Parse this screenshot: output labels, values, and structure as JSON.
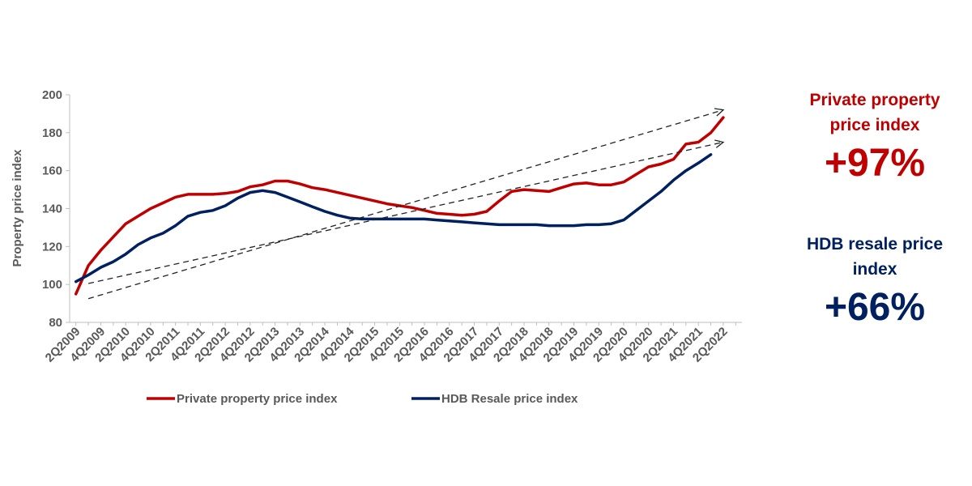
{
  "chart_data": {
    "type": "line",
    "title": "",
    "xlabel": "",
    "ylabel": "Property price index",
    "ylim": [
      80,
      200
    ],
    "yticks": [
      80,
      100,
      120,
      140,
      160,
      180,
      200
    ],
    "grid": false,
    "legend_position": "bottom",
    "x_labels_shown": [
      "2Q2009",
      "4Q2009",
      "2Q2010",
      "4Q2010",
      "2Q2011",
      "4Q2011",
      "2Q2012",
      "4Q2012",
      "2Q2013",
      "4Q2013",
      "2Q2014",
      "4Q2014",
      "2Q2015",
      "4Q2015",
      "2Q2016",
      "4Q2016",
      "2Q2017",
      "4Q2017",
      "2Q2018",
      "4Q2018",
      "2Q2019",
      "4Q2019",
      "2Q2020",
      "4Q2020",
      "2Q2021",
      "4Q2021",
      "2Q2022"
    ],
    "x": [
      "2Q2009",
      "3Q2009",
      "4Q2009",
      "1Q2010",
      "2Q2010",
      "3Q2010",
      "4Q2010",
      "1Q2011",
      "2Q2011",
      "3Q2011",
      "4Q2011",
      "1Q2012",
      "2Q2012",
      "3Q2012",
      "4Q2012",
      "1Q2013",
      "2Q2013",
      "3Q2013",
      "4Q2013",
      "1Q2014",
      "2Q2014",
      "3Q2014",
      "4Q2014",
      "1Q2015",
      "2Q2015",
      "3Q2015",
      "4Q2015",
      "1Q2016",
      "2Q2016",
      "3Q2016",
      "4Q2016",
      "1Q2017",
      "2Q2017",
      "3Q2017",
      "4Q2017",
      "1Q2018",
      "2Q2018",
      "3Q2018",
      "4Q2018",
      "1Q2019",
      "2Q2019",
      "3Q2019",
      "4Q2019",
      "1Q2020",
      "2Q2020",
      "3Q2020",
      "4Q2020",
      "1Q2021",
      "2Q2021",
      "3Q2021",
      "4Q2021",
      "1Q2022",
      "2Q2022",
      "3Q2022"
    ],
    "series": [
      {
        "name": "Private property price index",
        "color": "#c00000",
        "values": [
          95,
          110,
          118,
          125,
          132,
          136,
          140,
          143,
          146,
          147.5,
          147.5,
          147.5,
          148,
          149,
          151.5,
          152.5,
          154.5,
          154.5,
          153,
          151,
          150,
          148.5,
          147,
          145.5,
          144,
          142.5,
          141.5,
          140.5,
          139,
          137.5,
          137,
          136.5,
          137,
          138.5,
          144,
          149,
          150,
          149.5,
          149,
          151,
          153,
          153.5,
          152.5,
          152.5,
          154,
          158,
          162,
          163.5,
          166,
          174,
          175,
          180,
          188,
          null
        ]
      },
      {
        "name": "HDB Resale price index",
        "color": "#002060",
        "values": [
          101.5,
          105,
          109,
          112,
          116,
          121,
          124.5,
          127,
          131,
          136,
          138,
          139,
          141.5,
          145.5,
          148.5,
          149.5,
          148.5,
          146,
          143.5,
          141,
          138.5,
          136.5,
          135,
          134.5,
          134.5,
          134.5,
          134.5,
          134.5,
          134.5,
          134,
          133.5,
          133,
          132.5,
          132,
          131.5,
          131.5,
          131.5,
          131.5,
          131,
          131,
          131,
          131.5,
          131.5,
          132,
          134,
          139,
          144,
          149,
          155,
          160,
          164,
          168.5,
          null,
          null
        ]
      }
    ],
    "annotations": [
      {
        "type": "trend-arrow",
        "from": {
          "x": "3Q2009",
          "y": 92.5
        },
        "to": {
          "x": "2Q2022",
          "y": 192
        }
      },
      {
        "type": "trend-arrow",
        "from": {
          "x": "3Q2009",
          "y": 100.5
        },
        "to": {
          "x": "2Q2022",
          "y": 175
        }
      }
    ]
  },
  "side_panel": {
    "private": {
      "label_line1": "Private property",
      "label_line2": "price index",
      "value": "+97%",
      "color": "#c00000"
    },
    "hdb": {
      "label_line1": "HDB resale price",
      "label_line2": "index",
      "value": "+66%",
      "color": "#002060"
    }
  }
}
